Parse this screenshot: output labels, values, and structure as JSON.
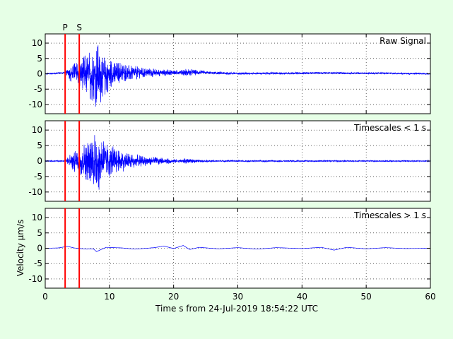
{
  "figure": {
    "background": "#e6ffe6",
    "axes_background": "#ffffff",
    "trace_color": "#0000ff",
    "marker_color": "#ff0000",
    "grid_style": "dotted"
  },
  "chart_data": {
    "type": "line",
    "xlabel": "Time s from 24-Jul-2019 18:54:22 UTC",
    "ylabel": "Velocity µm/s",
    "xlim": [
      0,
      60
    ],
    "ylim": [
      -13,
      13
    ],
    "xticks": [
      0,
      10,
      20,
      30,
      40,
      50,
      60
    ],
    "yticks": [
      -10,
      -5,
      0,
      5,
      10
    ],
    "grid": true,
    "phase_markers": [
      {
        "label": "P",
        "x": 3.1
      },
      {
        "label": "S",
        "x": 5.3
      }
    ],
    "panels": [
      {
        "title": "Raw Signal",
        "envelope": {
          "t": [
            0,
            3.0,
            3.3,
            4.0,
            5.0,
            5.5,
            6.5,
            7.5,
            8.0,
            8.5,
            9.5,
            11,
            13,
            15,
            17,
            19,
            21,
            22,
            25,
            30,
            40,
            50,
            60
          ],
          "amp": [
            0.3,
            0.3,
            1.0,
            3.5,
            5.0,
            6.0,
            8.0,
            10.0,
            12.5,
            11.0,
            7.0,
            5.0,
            3.0,
            2.2,
            1.6,
            1.2,
            0.8,
            1.4,
            0.6,
            0.45,
            0.4,
            0.35,
            0.3
          ]
        },
        "long_period_wave": {
          "t": [
            0,
            3.5,
            6.5,
            8.0,
            12,
            17,
            22,
            30,
            40,
            44,
            46,
            52,
            60
          ],
          "v": [
            0,
            0.4,
            -0.3,
            -0.8,
            0.3,
            0.4,
            0.5,
            0.1,
            0.2,
            0.3,
            0.2,
            0.2,
            0
          ]
        }
      },
      {
        "title": "Timescales < 1 s",
        "envelope": {
          "t": [
            0,
            3.0,
            3.3,
            4.0,
            5.0,
            5.5,
            6.5,
            7.5,
            8.0,
            8.5,
            9.5,
            11,
            13,
            15,
            17,
            19,
            21,
            22,
            25,
            30,
            40,
            50,
            60
          ],
          "amp": [
            0.25,
            0.25,
            0.9,
            3.3,
            4.8,
            6.0,
            8.0,
            10.0,
            12.5,
            11.0,
            7.0,
            5.0,
            3.0,
            2.1,
            1.5,
            1.1,
            0.7,
            1.0,
            0.4,
            0.3,
            0.3,
            0.25,
            0.25
          ]
        }
      },
      {
        "title": "Timescales > 1 s",
        "long_period_wave": {
          "t": [
            0,
            2,
            3.5,
            4.5,
            6.5,
            7.5,
            8.0,
            8.5,
            9.5,
            12,
            14,
            17,
            18.5,
            20,
            21.5,
            22.5,
            24,
            27,
            30,
            33,
            36,
            40,
            43,
            45,
            47,
            50,
            53,
            56,
            60
          ],
          "v": [
            0,
            0.1,
            0.6,
            0.1,
            -0.3,
            -0.2,
            -1.1,
            -0.6,
            0.3,
            0.1,
            -0.3,
            0.2,
            0.7,
            -0.1,
            0.9,
            -0.4,
            0.3,
            -0.2,
            0.2,
            -0.3,
            0.2,
            -0.1,
            0.3,
            -0.6,
            0.3,
            -0.2,
            0.2,
            -0.1,
            0
          ]
        }
      }
    ]
  }
}
